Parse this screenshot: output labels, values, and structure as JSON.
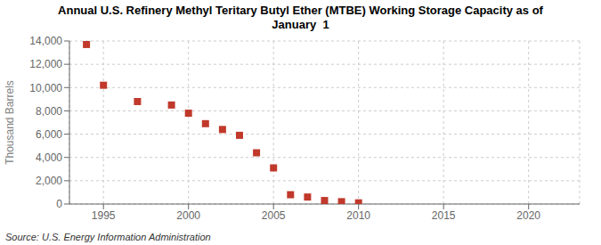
{
  "chart_data": {
    "type": "scatter",
    "title": "Annual U.S. Refinery Methyl Teritary Butyl Ether (MTBE) Working Storage Capacity as of\nJanuary  1",
    "y_label": "Thousand Barrels",
    "annotations": [
      "Source: U.S. Energy Information Administration"
    ],
    "color": "#c0392b",
    "marker": "square",
    "grid": true,
    "xlim": [
      1993.0,
      2023.0
    ],
    "ylim": [
      0,
      14000
    ],
    "xticks": [
      1995,
      2000,
      2005,
      2010,
      2015,
      2020
    ],
    "yticks": [
      0,
      {
        "value": 2000,
        "label": "2,000"
      },
      {
        "value": 4000,
        "label": "4,000"
      },
      {
        "value": 6000,
        "label": "6,000"
      },
      {
        "value": 8000,
        "label": "8,000"
      },
      {
        "value": 10000,
        "label": "10,000"
      },
      {
        "value": 12000,
        "label": "12,000"
      },
      {
        "value": 14000,
        "label": "14,000"
      }
    ],
    "x": [
      1994,
      1995,
      1997,
      1999,
      2000,
      2001,
      2002,
      2003,
      2004,
      2005,
      2006,
      2007,
      2008,
      2009,
      2010
    ],
    "values": [
      13700,
      10200,
      8800,
      8500,
      7800,
      6900,
      6400,
      5900,
      4400,
      3100,
      800,
      600,
      300,
      200,
      100
    ]
  }
}
